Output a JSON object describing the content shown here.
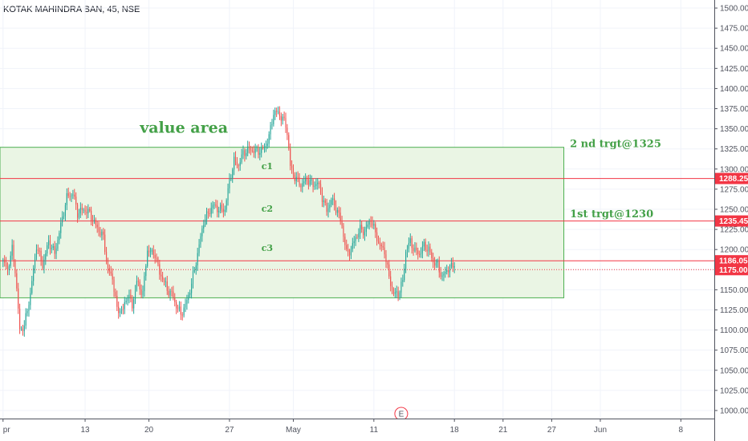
{
  "symbol": "KOTAK MAHINDRA BAN, 45, NSE",
  "colors": {
    "up": "#26a69a",
    "down": "#ef5350",
    "zone_fill": "#eaf5e4",
    "zone_stroke": "#4caf50",
    "level": "#f23645",
    "annotation": "#43a047",
    "axis_text": "#50535e",
    "earnings_badge": "#f23645"
  },
  "chart_data": {
    "type": "candlestick",
    "interval_minutes": 45,
    "ylim": [
      990,
      1510
    ],
    "y_ticks": [
      1000,
      1025,
      1050,
      1075,
      1100,
      1125,
      1150,
      1175,
      1200,
      1225,
      1250,
      1275,
      1300,
      1325,
      1350,
      1375,
      1400,
      1425,
      1450,
      1475,
      1500
    ],
    "y_tick_labels": [
      "1000.00",
      "1025.00",
      "1050.00",
      "1075.00",
      "1100.00",
      "1125.00",
      "1150.00",
      "1175.00",
      "1200.00",
      "1225.00",
      "1250.00",
      "1275.00",
      "1300.00",
      "1325.00",
      "1350.00",
      "1375.00",
      "1400.00",
      "1425.00",
      "1450.00",
      "1475.00",
      "1500.00"
    ],
    "x_ticks": [
      {
        "label": "pr",
        "index": 0
      },
      {
        "label": "13",
        "index": 54
      },
      {
        "label": "20",
        "index": 96
      },
      {
        "label": "27",
        "index": 149
      },
      {
        "label": "May",
        "index": 191
      },
      {
        "label": "11",
        "index": 244
      },
      {
        "label": "18",
        "index": 297
      },
      {
        "label": "21",
        "index": 329
      },
      {
        "label": "27",
        "index": 361
      },
      {
        "label": "Jun",
        "index": 393
      },
      {
        "label": "8",
        "index": 446
      }
    ],
    "x_index_range": [
      -2,
      468
    ],
    "candle_count": 298,
    "anchors": [
      [
        0,
        1185
      ],
      [
        3,
        1175
      ],
      [
        6,
        1200
      ],
      [
        8,
        1175
      ],
      [
        11,
        1100
      ],
      [
        14,
        1105
      ],
      [
        18,
        1145
      ],
      [
        22,
        1205
      ],
      [
        26,
        1180
      ],
      [
        30,
        1210
      ],
      [
        34,
        1195
      ],
      [
        38,
        1230
      ],
      [
        42,
        1265
      ],
      [
        46,
        1270
      ],
      [
        49,
        1245
      ],
      [
        53,
        1250
      ],
      [
        57,
        1245
      ],
      [
        61,
        1230
      ],
      [
        66,
        1215
      ],
      [
        69,
        1175
      ],
      [
        72,
        1165
      ],
      [
        75,
        1125
      ],
      [
        79,
        1125
      ],
      [
        82,
        1145
      ],
      [
        85,
        1130
      ],
      [
        88,
        1160
      ],
      [
        92,
        1145
      ],
      [
        95,
        1200
      ],
      [
        98,
        1195
      ],
      [
        100,
        1195
      ],
      [
        103,
        1170
      ],
      [
        105,
        1165
      ],
      [
        108,
        1150
      ],
      [
        111,
        1145
      ],
      [
        114,
        1130
      ],
      [
        117,
        1120
      ],
      [
        120,
        1130
      ],
      [
        123,
        1150
      ],
      [
        126,
        1175
      ],
      [
        129,
        1205
      ],
      [
        132,
        1235
      ],
      [
        135,
        1245
      ],
      [
        138,
        1255
      ],
      [
        142,
        1250
      ],
      [
        146,
        1250
      ],
      [
        149,
        1285
      ],
      [
        152,
        1310
      ],
      [
        155,
        1305
      ],
      [
        158,
        1320
      ],
      [
        162,
        1325
      ],
      [
        166,
        1322
      ],
      [
        170,
        1323
      ],
      [
        173,
        1330
      ],
      [
        175,
        1340
      ],
      [
        178,
        1370
      ],
      [
        181,
        1370
      ],
      [
        184,
        1362
      ],
      [
        186,
        1355
      ],
      [
        187,
        1345
      ],
      [
        189,
        1303
      ],
      [
        192,
        1290
      ],
      [
        196,
        1280
      ],
      [
        200,
        1288
      ],
      [
        204,
        1280
      ],
      [
        207,
        1283
      ],
      [
        210,
        1265
      ],
      [
        213,
        1248
      ],
      [
        216,
        1262
      ],
      [
        220,
        1248
      ],
      [
        223,
        1230
      ],
      [
        226,
        1195
      ],
      [
        229,
        1200
      ],
      [
        232,
        1215
      ],
      [
        235,
        1225
      ],
      [
        238,
        1222
      ],
      [
        242,
        1238
      ],
      [
        245,
        1220
      ],
      [
        248,
        1205
      ],
      [
        251,
        1198
      ],
      [
        254,
        1165
      ],
      [
        257,
        1145
      ],
      [
        260,
        1145
      ],
      [
        263,
        1160
      ],
      [
        265,
        1198
      ],
      [
        268,
        1210
      ],
      [
        271,
        1198
      ],
      [
        274,
        1195
      ],
      [
        277,
        1205
      ],
      [
        280,
        1200
      ],
      [
        283,
        1185
      ],
      [
        286,
        1180
      ],
      [
        289,
        1165
      ],
      [
        292,
        1175
      ],
      [
        295,
        1178
      ],
      [
        297,
        1183
      ]
    ],
    "last_price": 1175.0,
    "price_badges": [
      "1288.25",
      "1235.45",
      "1186.05",
      "1175.00"
    ],
    "value_area": {
      "low": 1140,
      "high": 1327,
      "start_index": -2,
      "end_index": 369
    },
    "levels": [
      {
        "name": "c1",
        "price": 1288.25
      },
      {
        "name": "c2",
        "price": 1235.45
      },
      {
        "name": "c3",
        "price": 1186.05
      }
    ],
    "annotations": [
      {
        "text": "value area",
        "price": 1345,
        "index": 90
      },
      {
        "text": "2 nd trgt@1325",
        "price": 1327,
        "index": 373
      },
      {
        "text": "1st trgt@1230",
        "price": 1240,
        "index": 373
      },
      {
        "text": "c1",
        "price": 1300,
        "index": 170
      },
      {
        "text": "c2",
        "price": 1247,
        "index": 170
      },
      {
        "text": "c3",
        "price": 1198,
        "index": 170
      }
    ],
    "earnings_marker": {
      "label": "E",
      "index": 262
    }
  }
}
